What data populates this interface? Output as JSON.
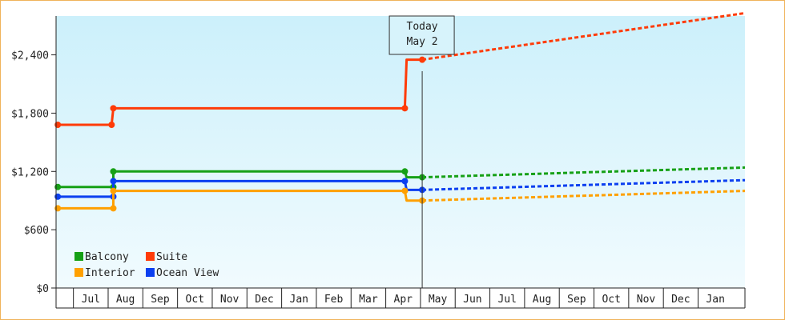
{
  "chart_data": {
    "type": "line",
    "title": "",
    "xlabel": "",
    "ylabel": "",
    "ylim": [
      0,
      2800
    ],
    "y_ticks": [
      {
        "value": 0,
        "label": "$0"
      },
      {
        "value": 600,
        "label": "$600"
      },
      {
        "value": 1200,
        "label": "$1,200"
      },
      {
        "value": 1800,
        "label": "$1,800"
      },
      {
        "value": 2400,
        "label": "$2,400"
      }
    ],
    "x_month_labels": [
      "Jul",
      "Aug",
      "Sep",
      "Oct",
      "Nov",
      "Dec",
      "Jan",
      "Feb",
      "Mar",
      "Apr",
      "May",
      "Jun",
      "Jul",
      "Aug",
      "Sep",
      "Oct",
      "Nov",
      "Dec",
      "Jan"
    ],
    "x_month_index_range": [
      -0.5,
      19.35
    ],
    "today": {
      "line1": "Today",
      "line2": "May 2",
      "month_index": 10.05
    },
    "grid": false,
    "background_gradient": [
      "#ccf0fb",
      "#f1fbfe"
    ],
    "legend": {
      "placement": "bottom-left",
      "entries": [
        {
          "name": "Balcony",
          "color": "#16a016"
        },
        {
          "name": "Suite",
          "color": "#ff3b08"
        },
        {
          "name": "Interior",
          "color": "#ffa000"
        },
        {
          "name": "Ocean View",
          "color": "#0b3ff0"
        }
      ]
    },
    "series": [
      {
        "name": "Suite",
        "color": "#ff3b08",
        "history": [
          [
            -0.45,
            1680
          ],
          [
            1.1,
            1680
          ],
          [
            1.15,
            1850
          ],
          [
            9.55,
            1850
          ],
          [
            9.6,
            2350
          ],
          [
            10.05,
            2350
          ]
        ],
        "forecast": [
          [
            10.05,
            2350
          ],
          [
            19.35,
            2830
          ]
        ]
      },
      {
        "name": "Balcony",
        "color": "#16a016",
        "history": [
          [
            -0.45,
            1040
          ],
          [
            1.15,
            1040
          ],
          [
            1.15,
            1200
          ],
          [
            9.55,
            1200
          ],
          [
            9.6,
            1140
          ],
          [
            10.05,
            1140
          ]
        ],
        "forecast": [
          [
            10.05,
            1140
          ],
          [
            19.35,
            1240
          ]
        ]
      },
      {
        "name": "Ocean View",
        "color": "#0b3ff0",
        "history": [
          [
            -0.45,
            940
          ],
          [
            1.15,
            940
          ],
          [
            1.15,
            1100
          ],
          [
            9.55,
            1100
          ],
          [
            9.6,
            1010
          ],
          [
            10.05,
            1010
          ]
        ],
        "forecast": [
          [
            10.05,
            1010
          ],
          [
            19.35,
            1110
          ]
        ]
      },
      {
        "name": "Interior",
        "color": "#ffa000",
        "history": [
          [
            -0.45,
            820
          ],
          [
            1.15,
            820
          ],
          [
            1.15,
            1000
          ],
          [
            9.55,
            1000
          ],
          [
            9.6,
            900
          ],
          [
            10.05,
            900
          ]
        ],
        "forecast": [
          [
            10.05,
            900
          ],
          [
            19.35,
            1000
          ]
        ]
      }
    ]
  }
}
